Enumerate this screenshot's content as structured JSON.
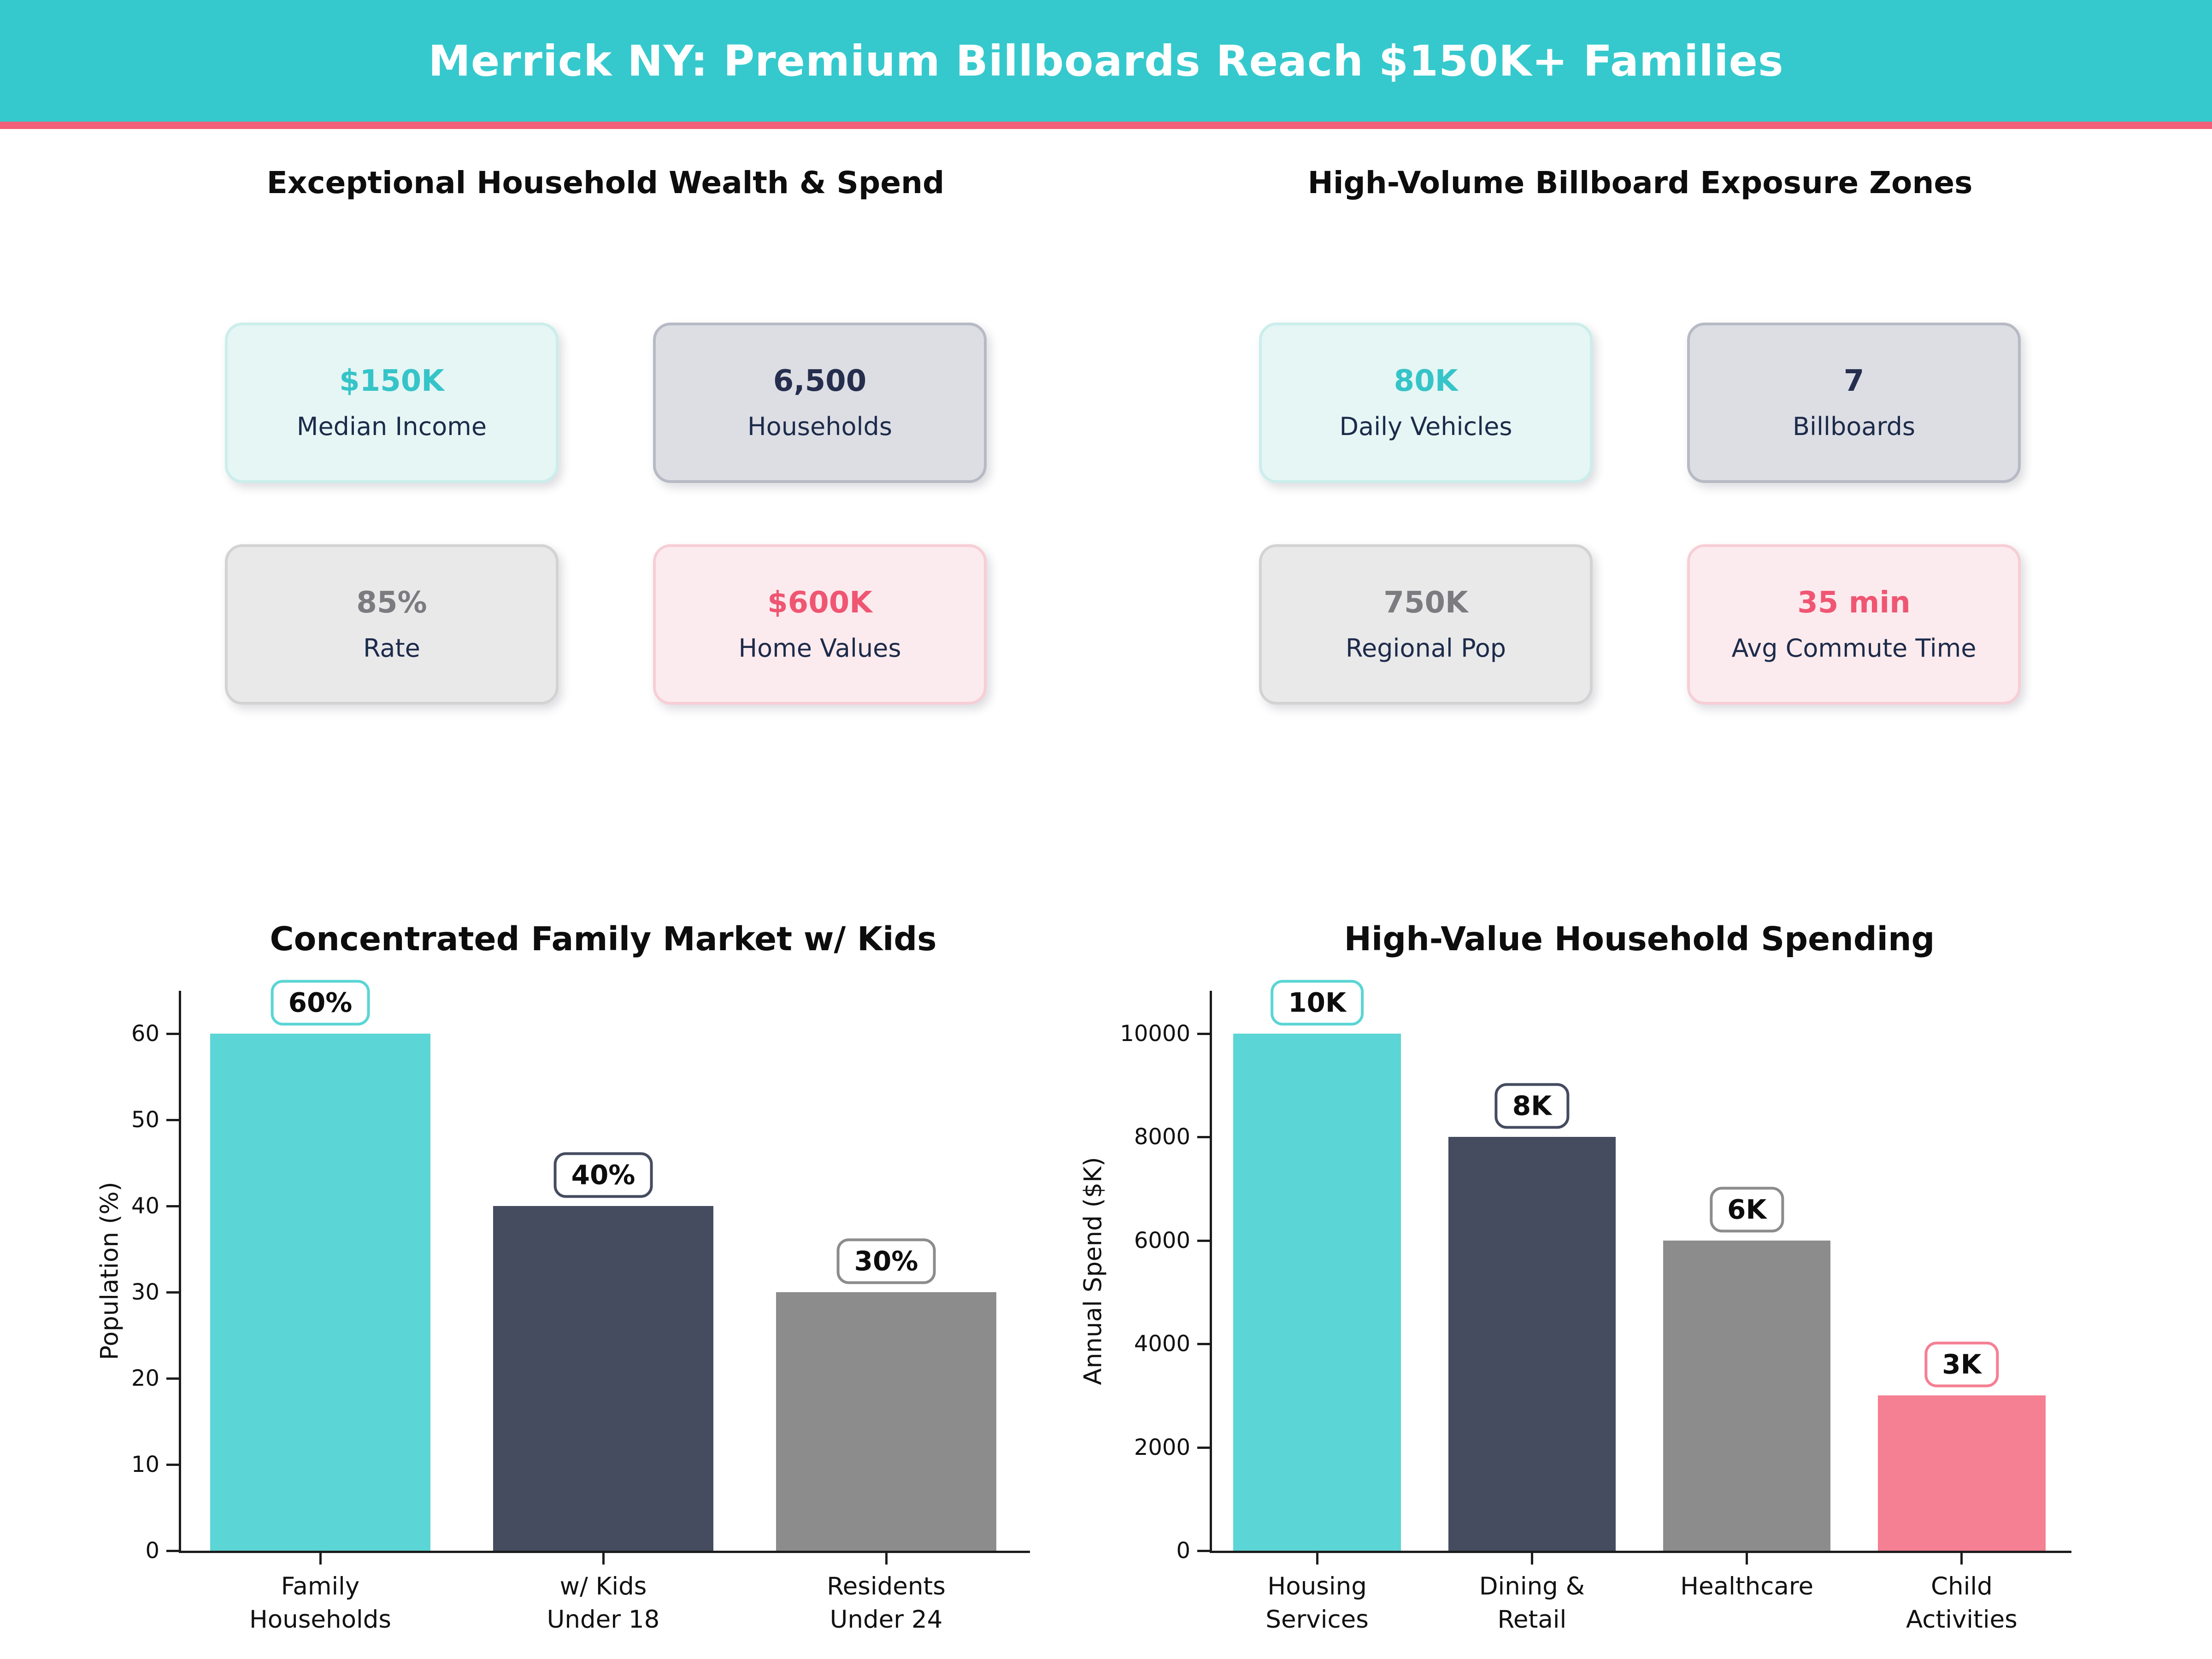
{
  "header": {
    "title": "Merrick NY: Premium Billboards Reach $150K+ Families"
  },
  "colors": {
    "header_bg": "#35c9cd",
    "header_underline": "#ef5f78",
    "teal": "#5bd5d5",
    "navy": "#454c60",
    "gray": "#8c8c8c",
    "pink": "#f57f93",
    "teal_text": "#35c4c8",
    "navy_text": "#262e4e",
    "gray_text": "#7b7b80",
    "pink_text": "#ef5672",
    "label_text": "#1d2b4a"
  },
  "sections": [
    {
      "title": "Exceptional Household Wealth & Spend",
      "cards": [
        {
          "value": "$150K",
          "label": "Median Income",
          "theme": "teal"
        },
        {
          "value": "6,500",
          "label": "Households",
          "theme": "navy"
        },
        {
          "value": "85%",
          "label": "Rate",
          "theme": "gray"
        },
        {
          "value": "$600K",
          "label": "Home Values",
          "theme": "pink"
        }
      ]
    },
    {
      "title": "High-Volume Billboard Exposure Zones",
      "cards": [
        {
          "value": "80K",
          "label": "Daily Vehicles",
          "theme": "teal"
        },
        {
          "value": "7",
          "label": "Billboards",
          "theme": "navy"
        },
        {
          "value": "750K",
          "label": "Regional Pop",
          "theme": "gray"
        },
        {
          "value": "35 min",
          "label": "Avg Commute Time",
          "theme": "pink"
        }
      ]
    }
  ],
  "chart_data": [
    {
      "type": "bar",
      "title": "Concentrated Family Market w/ Kids",
      "xlabel": "",
      "ylabel": "Population (%)",
      "categories": [
        "Family\nHouseholds",
        "w/ Kids\nUnder 18",
        "Residents\nUnder 24"
      ],
      "values": [
        60,
        40,
        30
      ],
      "value_labels": [
        "60%",
        "40%",
        "30%"
      ],
      "bar_colors": [
        "#5bd5d5",
        "#454c60",
        "#8c8c8c"
      ],
      "yticks": [
        0,
        10,
        20,
        30,
        40,
        50,
        60
      ],
      "ylim": [
        0,
        65
      ],
      "grid": false,
      "legend": null
    },
    {
      "type": "bar",
      "title": "High-Value Household Spending",
      "xlabel": "",
      "ylabel": "Annual Spend ($K)",
      "categories": [
        "Housing\nServices",
        "Dining &\nRetail",
        "Healthcare",
        "Child\nActivities"
      ],
      "values": [
        10000,
        8000,
        6000,
        3000
      ],
      "value_labels": [
        "10K",
        "8K",
        "6K",
        "3K"
      ],
      "bar_colors": [
        "#5bd5d5",
        "#454c60",
        "#8c8c8c",
        "#f57f93"
      ],
      "yticks": [
        0,
        2000,
        4000,
        6000,
        8000,
        10000
      ],
      "ylim": [
        0,
        10830
      ],
      "grid": false,
      "legend": null
    }
  ]
}
